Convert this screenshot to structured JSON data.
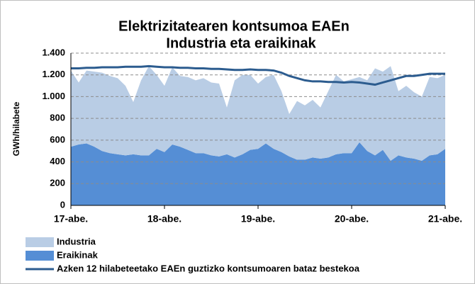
{
  "chart_data": {
    "type": "stacked-area-line",
    "title": [
      "Elektrizitatearen kontsumoa EAEn",
      "Industria eta eraikinak"
    ],
    "y_label": "GWh/hilabete",
    "categories": [
      "17-abe.",
      null,
      null,
      null,
      null,
      null,
      null,
      null,
      null,
      null,
      null,
      null,
      "18-abe.",
      null,
      null,
      null,
      null,
      null,
      null,
      null,
      null,
      null,
      null,
      null,
      "19-abe.",
      null,
      null,
      null,
      null,
      null,
      null,
      null,
      null,
      null,
      null,
      null,
      "20-abe.",
      null,
      null,
      null,
      null,
      null,
      null,
      null,
      null,
      null,
      null,
      null,
      "21-abe."
    ],
    "series": [
      {
        "name": "Industria",
        "color": "#b9cde5",
        "kind": "area",
        "values": [
          700,
          570,
          670,
          690,
          720,
          710,
          700,
          640,
          480,
          690,
          820,
          680,
          610,
          710,
          650,
          670,
          670,
          690,
          670,
          670,
          430,
          710,
          730,
          690,
          600,
          610,
          680,
          560,
          390,
          540,
          500,
          530,
          470,
          610,
          730,
          660,
          680,
          600,
          650,
          800,
          720,
          870,
          590,
          660,
          610,
          590,
          720,
          700,
          680
        ]
      },
      {
        "name": "Eraikinak",
        "color": "#558ed5",
        "kind": "area",
        "values": [
          540,
          560,
          570,
          540,
          500,
          480,
          470,
          460,
          470,
          460,
          460,
          520,
          490,
          560,
          540,
          510,
          480,
          480,
          460,
          450,
          470,
          440,
          470,
          510,
          520,
          570,
          520,
          490,
          450,
          420,
          420,
          440,
          430,
          440,
          470,
          480,
          480,
          580,
          500,
          460,
          510,
          410,
          460,
          440,
          430,
          410,
          460,
          470,
          520
        ]
      },
      {
        "name": "Azken 12 hilabeteetako EAEn guztizko kontsumoaren bataz bestekoa",
        "color": "#2c5c8f",
        "kind": "line",
        "values": [
          1260,
          1260,
          1265,
          1265,
          1270,
          1270,
          1270,
          1275,
          1275,
          1275,
          1280,
          1275,
          1270,
          1270,
          1265,
          1265,
          1260,
          1260,
          1255,
          1255,
          1250,
          1245,
          1245,
          1250,
          1245,
          1245,
          1240,
          1220,
          1190,
          1170,
          1150,
          1140,
          1140,
          1135,
          1135,
          1130,
          1135,
          1130,
          1120,
          1110,
          1130,
          1150,
          1170,
          1190,
          1190,
          1200,
          1210,
          1210,
          1210
        ]
      }
    ],
    "stack_order": [
      1,
      0
    ],
    "ylim": [
      0,
      1400
    ],
    "yticks": [
      0,
      200,
      400,
      600,
      800,
      {
        "value": 1000,
        "label": "1.000"
      },
      {
        "value": 1200,
        "label": "1.200"
      },
      {
        "value": 1400,
        "label": "1.400"
      }
    ],
    "grid": true,
    "legend": "bottom-left"
  }
}
